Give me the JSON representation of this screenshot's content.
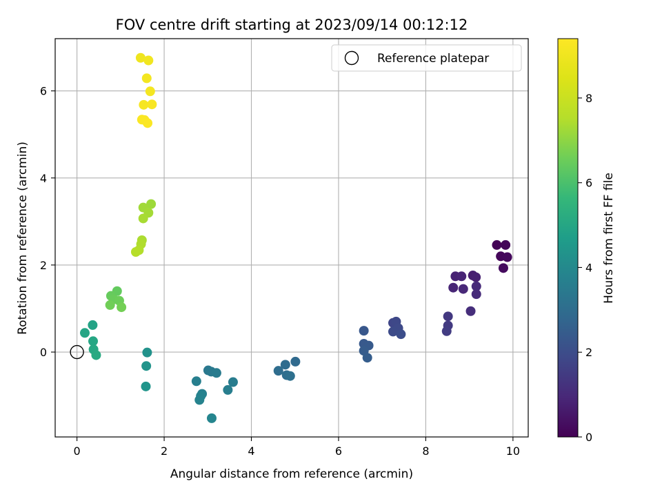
{
  "chart_data": {
    "type": "scatter",
    "title": "FOV centre drift starting at 2023/09/14 00:12:12",
    "xlabel": "Angular distance from reference (arcmin)",
    "ylabel": "Rotation from reference (arcmin)",
    "xlim": [
      -0.5,
      10.35
    ],
    "ylim": [
      -1.95,
      7.2
    ],
    "xticks": [
      "0",
      "2",
      "4",
      "6",
      "8",
      "10"
    ],
    "yticks": [
      "0",
      "2",
      "4",
      "6"
    ],
    "grid": true,
    "legend": {
      "placement": "top-right",
      "entries": [
        "Reference platepar"
      ]
    },
    "reference_point": {
      "x": 0,
      "y": 0
    },
    "colorbar": {
      "label": "Hours from first FF file",
      "range": [
        0,
        9.4
      ],
      "ticks": [
        "0",
        "2",
        "4",
        "6",
        "8"
      ],
      "colormap": "viridis"
    },
    "points": [
      {
        "x": 9.63,
        "y": 2.46,
        "c": 0.05
      },
      {
        "x": 9.83,
        "y": 2.46,
        "c": 0.1
      },
      {
        "x": 9.72,
        "y": 2.2,
        "c": 0.15
      },
      {
        "x": 9.87,
        "y": 2.18,
        "c": 0.2
      },
      {
        "x": 9.78,
        "y": 1.93,
        "c": 0.25
      },
      {
        "x": 9.08,
        "y": 1.76,
        "c": 0.7
      },
      {
        "x": 9.15,
        "y": 1.72,
        "c": 0.75
      },
      {
        "x": 8.68,
        "y": 1.74,
        "c": 0.8
      },
      {
        "x": 8.82,
        "y": 1.74,
        "c": 0.85
      },
      {
        "x": 8.63,
        "y": 1.48,
        "c": 0.9
      },
      {
        "x": 8.86,
        "y": 1.45,
        "c": 0.95
      },
      {
        "x": 9.16,
        "y": 1.51,
        "c": 1.0
      },
      {
        "x": 9.16,
        "y": 1.33,
        "c": 1.05
      },
      {
        "x": 9.03,
        "y": 0.94,
        "c": 1.1
      },
      {
        "x": 8.51,
        "y": 0.82,
        "c": 1.4
      },
      {
        "x": 8.51,
        "y": 0.61,
        "c": 1.45
      },
      {
        "x": 8.48,
        "y": 0.48,
        "c": 1.5
      },
      {
        "x": 7.25,
        "y": 0.67,
        "c": 1.8
      },
      {
        "x": 7.32,
        "y": 0.7,
        "c": 1.85
      },
      {
        "x": 7.37,
        "y": 0.55,
        "c": 1.9
      },
      {
        "x": 7.25,
        "y": 0.47,
        "c": 1.95
      },
      {
        "x": 7.43,
        "y": 0.41,
        "c": 2.0
      },
      {
        "x": 6.58,
        "y": 0.49,
        "c": 2.3
      },
      {
        "x": 6.58,
        "y": 0.19,
        "c": 2.35
      },
      {
        "x": 6.69,
        "y": 0.15,
        "c": 2.4
      },
      {
        "x": 6.58,
        "y": 0.03,
        "c": 2.45
      },
      {
        "x": 6.66,
        "y": -0.13,
        "c": 2.5
      },
      {
        "x": 5.01,
        "y": -0.22,
        "c": 2.9
      },
      {
        "x": 4.78,
        "y": -0.29,
        "c": 2.95
      },
      {
        "x": 4.62,
        "y": -0.43,
        "c": 3.0
      },
      {
        "x": 4.81,
        "y": -0.53,
        "c": 3.05
      },
      {
        "x": 4.89,
        "y": -0.55,
        "c": 3.1
      },
      {
        "x": 3.01,
        "y": -0.42,
        "c": 3.4
      },
      {
        "x": 3.08,
        "y": -0.45,
        "c": 3.45
      },
      {
        "x": 3.2,
        "y": -0.48,
        "c": 3.5
      },
      {
        "x": 3.58,
        "y": -0.69,
        "c": 3.55
      },
      {
        "x": 3.46,
        "y": -0.87,
        "c": 3.6
      },
      {
        "x": 2.74,
        "y": -0.67,
        "c": 3.65
      },
      {
        "x": 2.87,
        "y": -0.96,
        "c": 3.7
      },
      {
        "x": 2.84,
        "y": -1.01,
        "c": 3.75
      },
      {
        "x": 2.81,
        "y": -1.1,
        "c": 3.8
      },
      {
        "x": 3.09,
        "y": -1.52,
        "c": 3.85
      },
      {
        "x": 1.61,
        "y": -0.01,
        "c": 4.3
      },
      {
        "x": 1.59,
        "y": -0.32,
        "c": 4.35
      },
      {
        "x": 1.58,
        "y": -0.79,
        "c": 4.4
      },
      {
        "x": 0.36,
        "y": 0.62,
        "c": 4.9
      },
      {
        "x": 0.18,
        "y": 0.44,
        "c": 4.95
      },
      {
        "x": 0.37,
        "y": 0.25,
        "c": 5.0
      },
      {
        "x": 0.38,
        "y": 0.06,
        "c": 5.05
      },
      {
        "x": 0.44,
        "y": -0.07,
        "c": 5.1
      },
      {
        "x": 0.92,
        "y": 1.4,
        "c": 6.4
      },
      {
        "x": 0.78,
        "y": 1.29,
        "c": 6.45
      },
      {
        "x": 0.84,
        "y": 1.21,
        "c": 6.5
      },
      {
        "x": 0.97,
        "y": 1.18,
        "c": 6.55
      },
      {
        "x": 0.76,
        "y": 1.08,
        "c": 6.6
      },
      {
        "x": 1.02,
        "y": 1.03,
        "c": 6.65
      },
      {
        "x": 1.7,
        "y": 3.4,
        "c": 7.2
      },
      {
        "x": 1.52,
        "y": 3.32,
        "c": 7.25
      },
      {
        "x": 1.64,
        "y": 3.2,
        "c": 7.3
      },
      {
        "x": 1.52,
        "y": 3.07,
        "c": 7.35
      },
      {
        "x": 1.49,
        "y": 2.57,
        "c": 7.4
      },
      {
        "x": 1.47,
        "y": 2.48,
        "c": 7.45
      },
      {
        "x": 1.42,
        "y": 2.34,
        "c": 7.5
      },
      {
        "x": 1.35,
        "y": 2.3,
        "c": 7.55
      },
      {
        "x": 1.46,
        "y": 6.76,
        "c": 9.0
      },
      {
        "x": 1.64,
        "y": 6.7,
        "c": 9.05
      },
      {
        "x": 1.6,
        "y": 6.29,
        "c": 9.1
      },
      {
        "x": 1.68,
        "y": 5.99,
        "c": 9.15
      },
      {
        "x": 1.53,
        "y": 5.68,
        "c": 9.2
      },
      {
        "x": 1.72,
        "y": 5.69,
        "c": 9.25
      },
      {
        "x": 1.49,
        "y": 5.34,
        "c": 9.3
      },
      {
        "x": 1.55,
        "y": 5.33,
        "c": 9.32
      },
      {
        "x": 1.62,
        "y": 5.26,
        "c": 9.35
      }
    ]
  }
}
